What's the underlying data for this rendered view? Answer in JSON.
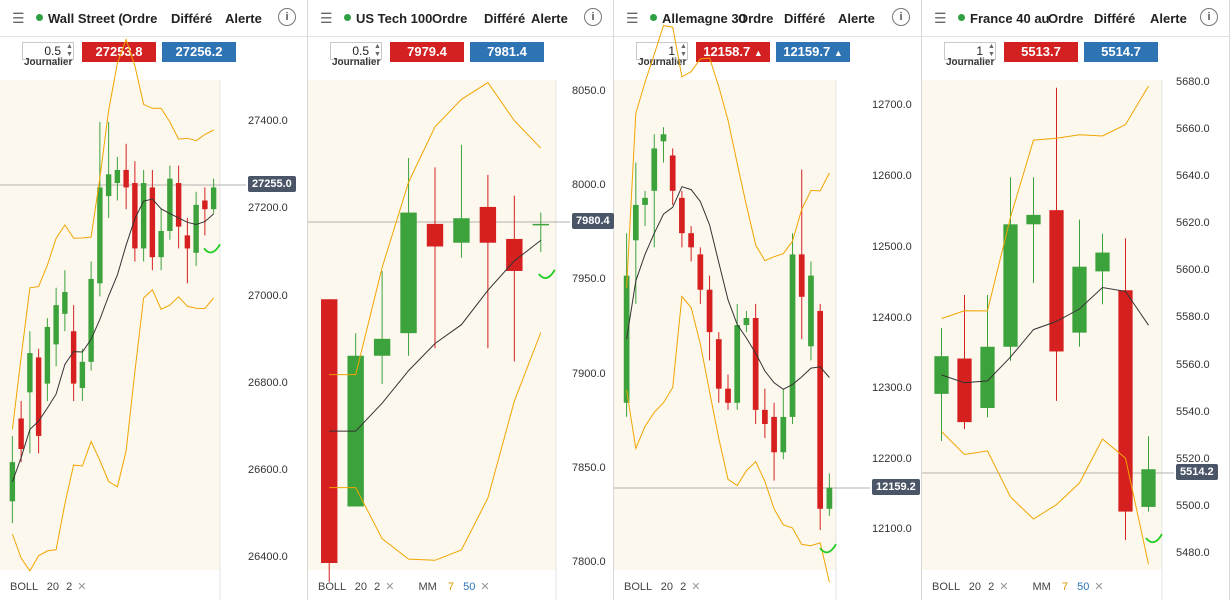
{
  "panels": [
    {
      "instrument": "Wall Street (",
      "order_label": "Ordre",
      "deferred_label": "Différé",
      "alert_label": "Alerte",
      "quantity": "0.5",
      "period": "Journalier",
      "sell_price": "27253.8",
      "buy_price": "27256.2",
      "sell_arrow": "",
      "buy_arrow": "",
      "current_price": "27255.0",
      "y_ticks": [
        "27400.0",
        "27200.0",
        "27000.0",
        "26800.0",
        "26600.0",
        "26400.0"
      ],
      "indicator": {
        "name": "BOLL",
        "period": "20",
        "dev": "2"
      },
      "ma": null
    },
    {
      "instrument": "US Tech 100",
      "order_label": "Ordre",
      "deferred_label": "Différé",
      "alert_label": "Alerte",
      "quantity": "0.5",
      "period": "Journalier",
      "sell_price": "7979.4",
      "buy_price": "7981.4",
      "sell_arrow": "",
      "buy_arrow": "",
      "current_price": "7980.4",
      "y_ticks": [
        "8050.0",
        "8000.0",
        "7950.0",
        "7900.0",
        "7850.0",
        "7800.0"
      ],
      "indicator": {
        "name": "BOLL",
        "period": "20",
        "dev": "2"
      },
      "ma": {
        "name": "MM",
        "v1": "7",
        "v2": "50"
      }
    },
    {
      "instrument": "Allemagne 30",
      "order_label": "Ordre",
      "deferred_label": "Différé",
      "alert_label": "Alerte",
      "quantity": "1",
      "period": "Journalier",
      "sell_price": "12158.7",
      "buy_price": "12159.7",
      "sell_arrow": "▲",
      "buy_arrow": "▲",
      "current_price": "12159.2",
      "y_ticks": [
        "12700.0",
        "12600.0",
        "12500.0",
        "12400.0",
        "12300.0",
        "12200.0",
        "12100.0"
      ],
      "indicator": {
        "name": "BOLL",
        "period": "20",
        "dev": "2"
      },
      "ma": null
    },
    {
      "instrument": "France 40 au",
      "order_label": "Ordre",
      "deferred_label": "Différé",
      "alert_label": "Alerte",
      "quantity": "1",
      "period": "Journalier",
      "sell_price": "5513.7",
      "buy_price": "5514.7",
      "sell_arrow": "",
      "buy_arrow": "",
      "current_price": "5514.2",
      "y_ticks": [
        "5680.0",
        "5660.0",
        "5640.0",
        "5620.0",
        "5600.0",
        "5580.0",
        "5560.0",
        "5540.0",
        "5520.0",
        "5500.0",
        "5480.0"
      ],
      "indicator": {
        "name": "BOLL",
        "period": "20",
        "dev": "2"
      },
      "ma": {
        "name": "MM",
        "v1": "7",
        "v2": "50"
      }
    }
  ],
  "colors": {
    "up": "#3ca33c",
    "down": "#d62020",
    "band": "#f0a500",
    "ma": "#333333",
    "annotation": "#22cc22"
  },
  "chart_data": [
    {
      "type": "candlestick",
      "ylim": [
        26380,
        27520
      ],
      "candles": [
        [
          26530,
          26620,
          26480,
          26680
        ],
        [
          26720,
          26650,
          26620,
          26760
        ],
        [
          26780,
          26870,
          26640,
          26920
        ],
        [
          26860,
          26680,
          26640,
          26880
        ],
        [
          26800,
          26930,
          26760,
          26950
        ],
        [
          26890,
          26980,
          26840,
          27020
        ],
        [
          26960,
          27010,
          26920,
          27060
        ],
        [
          26920,
          26800,
          26760,
          26980
        ],
        [
          26790,
          26850,
          26760,
          26880
        ],
        [
          26850,
          27040,
          26830,
          27080
        ],
        [
          27030,
          27250,
          27000,
          27400
        ],
        [
          27230,
          27280,
          27180,
          27400
        ],
        [
          27260,
          27290,
          27220,
          27320
        ],
        [
          27290,
          27250,
          27200,
          27350
        ],
        [
          27260,
          27110,
          27080,
          27310
        ],
        [
          27110,
          27260,
          27080,
          27290
        ],
        [
          27250,
          27090,
          27060,
          27290
        ],
        [
          27090,
          27150,
          27060,
          27200
        ],
        [
          27150,
          27270,
          27130,
          27300
        ],
        [
          27260,
          27160,
          27110,
          27300
        ],
        [
          27140,
          27110,
          27030,
          27180
        ],
        [
          27100,
          27210,
          27070,
          27240
        ],
        [
          27220,
          27200,
          27140,
          27250
        ],
        [
          27200,
          27250,
          27190,
          27270
        ]
      ]
    },
    {
      "type": "candlestick",
      "ylim": [
        7795,
        8060
      ],
      "candles": [
        [
          7940,
          7800,
          7790,
          7940
        ],
        [
          7830,
          7910,
          7830,
          7922
        ],
        [
          7910,
          7919,
          7895,
          7955
        ],
        [
          7922,
          7986,
          7910,
          8015
        ],
        [
          7980,
          7968,
          7914,
          8010
        ],
        [
          7970,
          7983,
          7962,
          8022
        ],
        [
          7989,
          7970,
          7914,
          8006
        ],
        [
          7972,
          7955,
          7907,
          7995
        ],
        [
          7980,
          7980,
          7965,
          7986
        ]
      ]
    },
    {
      "type": "candlestick",
      "ylim": [
        12080,
        12760
      ],
      "candles": [
        [
          12280,
          12460,
          12260,
          12520
        ],
        [
          12510,
          12560,
          12420,
          12620
        ],
        [
          12560,
          12570,
          12530,
          12580
        ],
        [
          12580,
          12640,
          12500,
          12660
        ],
        [
          12650,
          12660,
          12620,
          12670
        ],
        [
          12630,
          12580,
          12560,
          12640
        ],
        [
          12570,
          12520,
          12500,
          12580
        ],
        [
          12520,
          12500,
          12480,
          12530
        ],
        [
          12490,
          12440,
          12420,
          12500
        ],
        [
          12440,
          12380,
          12340,
          12460
        ],
        [
          12370,
          12300,
          12280,
          12380
        ],
        [
          12300,
          12280,
          12270,
          12320
        ],
        [
          12280,
          12390,
          12270,
          12420
        ],
        [
          12390,
          12400,
          12380,
          12410
        ],
        [
          12400,
          12270,
          12250,
          12420
        ],
        [
          12270,
          12250,
          12230,
          12300
        ],
        [
          12260,
          12210,
          12170,
          12280
        ],
        [
          12210,
          12260,
          12200,
          12300
        ],
        [
          12260,
          12490,
          12250,
          12520
        ],
        [
          12490,
          12430,
          12370,
          12610
        ],
        [
          12360,
          12460,
          12340,
          12480
        ],
        [
          12410,
          12130,
          12100,
          12420
        ],
        [
          12130,
          12160,
          12120,
          12180
        ]
      ]
    },
    {
      "type": "candlestick",
      "ylim": [
        5470,
        5690
      ],
      "candles": [
        [
          5548,
          5564,
          5528,
          5576
        ],
        [
          5563,
          5536,
          5533,
          5590
        ],
        [
          5542,
          5568,
          5538,
          5590
        ],
        [
          5568,
          5620,
          5562,
          5640
        ],
        [
          5620,
          5624,
          5595,
          5640
        ],
        [
          5626,
          5566,
          5545,
          5678
        ],
        [
          5574,
          5602,
          5568,
          5622
        ],
        [
          5600,
          5608,
          5586,
          5616
        ],
        [
          5592,
          5498,
          5486,
          5614
        ],
        [
          5500,
          5516,
          5498,
          5530
        ]
      ]
    }
  ]
}
